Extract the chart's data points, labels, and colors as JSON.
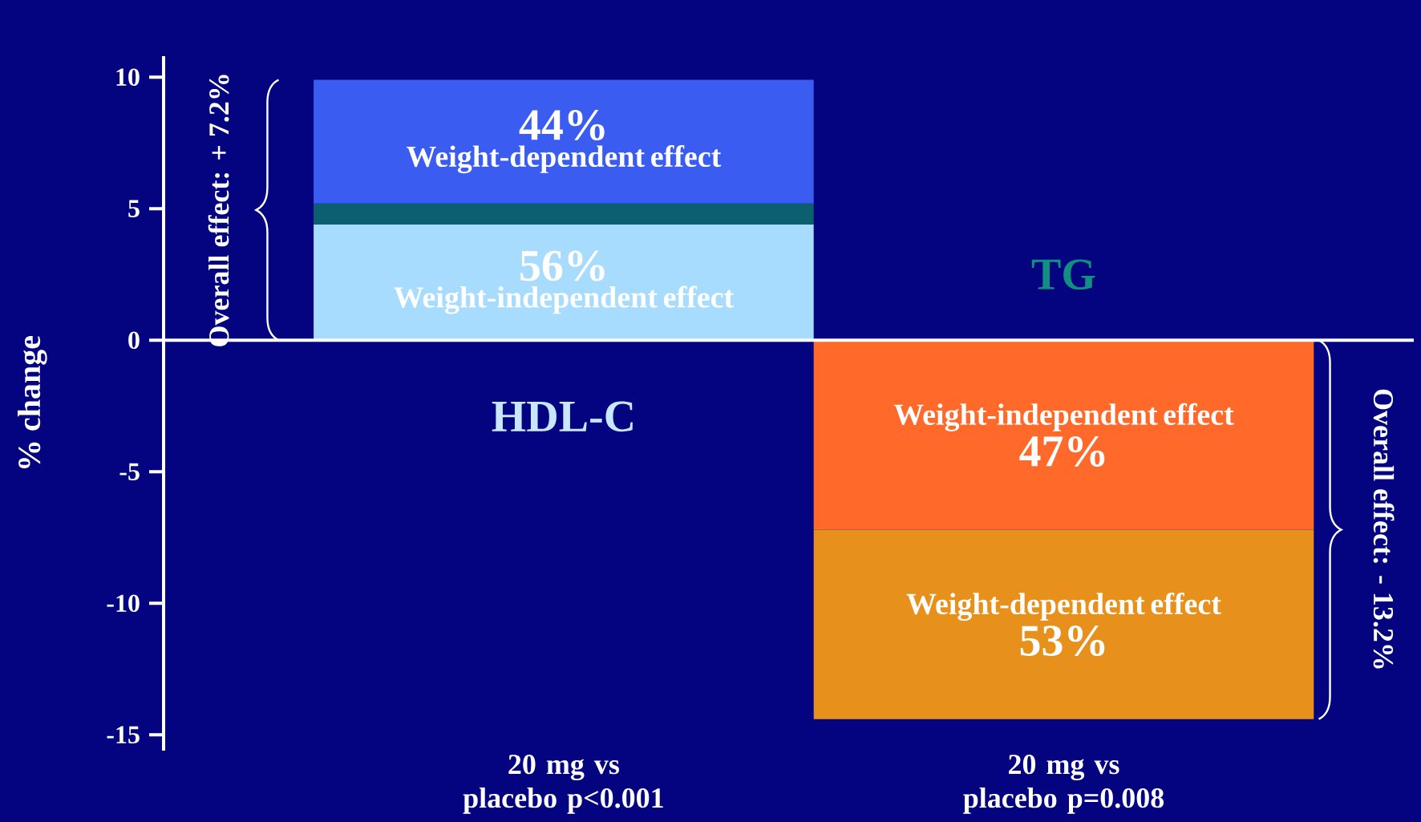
{
  "chart_data": {
    "type": "bar",
    "stacked": true,
    "categories": [
      "20 mg vs placebo p<0.001",
      "20 mg vs placebo p=0.008"
    ],
    "series": [
      {
        "name": "Weight-independent effect",
        "colors": [
          "#a8dcff",
          "#ff6a2a"
        ],
        "values": [
          4.4,
          -7.2
        ]
      },
      {
        "colors": [
          "#0b5f6e",
          null
        ],
        "values": [
          0.8,
          null
        ]
      },
      {
        "name": "Weight-dependent effect",
        "colors": [
          "#3a5cf0",
          "#e8901c"
        ],
        "values": [
          4.7,
          -7.2
        ]
      }
    ],
    "ylabel": "% change",
    "ylim": [
      -15.6,
      10.8
    ],
    "yticks": [
      10,
      5,
      0,
      -5,
      -10,
      -15
    ],
    "annotations": [
      "HDL-C",
      "TG",
      "Overall effect: + 7.2%",
      "Overall effect: - 13.2%",
      "56%",
      "47%",
      "44%",
      "53%"
    ],
    "ref_lines": [
      {
        "axis": "y",
        "value": 0,
        "color": "#ffffff"
      }
    ],
    "grid": false
  }
}
